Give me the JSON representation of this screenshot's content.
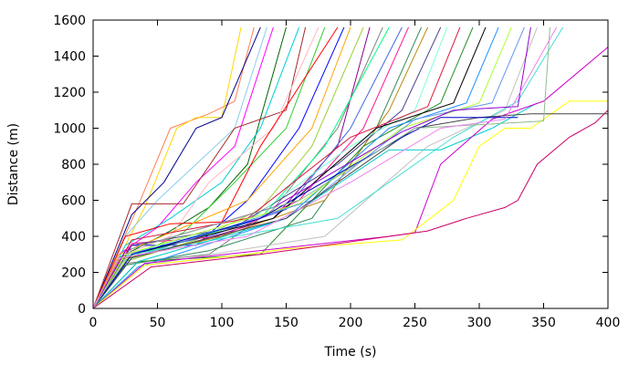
{
  "chart_data": {
    "type": "line",
    "title": "",
    "xlabel": "Time (s)",
    "ylabel": "Distance (m)",
    "xlim": [
      0,
      400
    ],
    "ylim": [
      0,
      1600
    ],
    "xticks": [
      0,
      50,
      100,
      150,
      200,
      250,
      300,
      350,
      400
    ],
    "yticks": [
      0,
      200,
      400,
      600,
      800,
      1000,
      1200,
      1400,
      1600
    ],
    "grid": false,
    "legend": "none",
    "series": [
      {
        "color": "#ff7f50",
        "points": [
          [
            0,
            0
          ],
          [
            35,
            570
          ],
          [
            60,
            1000
          ],
          [
            90,
            1080
          ],
          [
            110,
            1150
          ],
          [
            125,
            1560
          ]
        ]
      },
      {
        "color": "#ffd700",
        "points": [
          [
            0,
            0
          ],
          [
            40,
            560
          ],
          [
            65,
            1000
          ],
          [
            80,
            1060
          ],
          [
            100,
            1060
          ],
          [
            115,
            1560
          ]
        ]
      },
      {
        "color": "#00008b",
        "points": [
          [
            0,
            0
          ],
          [
            30,
            520
          ],
          [
            55,
            700
          ],
          [
            80,
            1000
          ],
          [
            100,
            1060
          ],
          [
            130,
            1560
          ]
        ]
      },
      {
        "color": "#87ceeb",
        "points": [
          [
            0,
            0
          ],
          [
            25,
            400
          ],
          [
            50,
            600
          ],
          [
            80,
            800
          ],
          [
            110,
            1000
          ],
          [
            135,
            1560
          ]
        ]
      },
      {
        "color": "#ff00ff",
        "points": [
          [
            0,
            0
          ],
          [
            20,
            300
          ],
          [
            50,
            450
          ],
          [
            80,
            700
          ],
          [
            110,
            900
          ],
          [
            140,
            1560
          ]
        ]
      },
      {
        "color": "#006400",
        "points": [
          [
            0,
            0
          ],
          [
            20,
            280
          ],
          [
            60,
            430
          ],
          [
            90,
            560
          ],
          [
            120,
            800
          ],
          [
            150,
            1560
          ]
        ]
      },
      {
        "color": "#00ced1",
        "points": [
          [
            0,
            0
          ],
          [
            25,
            350
          ],
          [
            60,
            500
          ],
          [
            100,
            700
          ],
          [
            130,
            1000
          ],
          [
            160,
            1560
          ]
        ]
      },
      {
        "color": "#a52a2a",
        "points": [
          [
            0,
            0
          ],
          [
            30,
            580
          ],
          [
            70,
            580
          ],
          [
            110,
            1000
          ],
          [
            150,
            1100
          ],
          [
            165,
            1560
          ]
        ]
      },
      {
        "color": "#ffb6c1",
        "points": [
          [
            0,
            0
          ],
          [
            25,
            300
          ],
          [
            60,
            400
          ],
          [
            90,
            700
          ],
          [
            140,
            1000
          ],
          [
            175,
            1560
          ]
        ]
      },
      {
        "color": "#32cd32",
        "points": [
          [
            0,
            0
          ],
          [
            20,
            250
          ],
          [
            70,
            420
          ],
          [
            110,
            700
          ],
          [
            150,
            1000
          ],
          [
            180,
            1560
          ]
        ]
      },
      {
        "color": "#ff0000",
        "points": [
          [
            0,
            0
          ],
          [
            25,
            400
          ],
          [
            60,
            470
          ],
          [
            100,
            480
          ],
          [
            130,
            900
          ],
          [
            190,
            1560
          ]
        ]
      },
      {
        "color": "#0000ff",
        "points": [
          [
            0,
            0
          ],
          [
            30,
            350
          ],
          [
            80,
            350
          ],
          [
            120,
            600
          ],
          [
            160,
            1000
          ],
          [
            195,
            1560
          ]
        ]
      },
      {
        "color": "#ffa500",
        "points": [
          [
            0,
            0
          ],
          [
            20,
            300
          ],
          [
            60,
            420
          ],
          [
            120,
            600
          ],
          [
            170,
            1000
          ],
          [
            200,
            1560
          ]
        ]
      },
      {
        "color": "#9acd32",
        "points": [
          [
            0,
            0
          ],
          [
            25,
            260
          ],
          [
            80,
            380
          ],
          [
            130,
            550
          ],
          [
            170,
            900
          ],
          [
            210,
            1560
          ]
        ]
      },
      {
        "color": "#8b008b",
        "points": [
          [
            0,
            0
          ],
          [
            30,
            300
          ],
          [
            70,
            350
          ],
          [
            140,
            500
          ],
          [
            190,
            900
          ],
          [
            215,
            1560
          ]
        ]
      },
      {
        "color": "#808080",
        "points": [
          [
            0,
            0
          ],
          [
            25,
            250
          ],
          [
            90,
            300
          ],
          [
            140,
            550
          ],
          [
            190,
            1000
          ],
          [
            225,
            1560
          ]
        ]
      },
      {
        "color": "#00ff7f",
        "points": [
          [
            0,
            0
          ],
          [
            20,
            280
          ],
          [
            60,
            350
          ],
          [
            130,
            500
          ],
          [
            180,
            900
          ],
          [
            230,
            1560
          ]
        ]
      },
      {
        "color": "#4169e1",
        "points": [
          [
            0,
            0
          ],
          [
            25,
            300
          ],
          [
            90,
            400
          ],
          [
            150,
            550
          ],
          [
            200,
            1000
          ],
          [
            240,
            1560
          ]
        ]
      },
      {
        "color": "#ff1493",
        "points": [
          [
            0,
            0
          ],
          [
            30,
            360
          ],
          [
            100,
            400
          ],
          [
            160,
            600
          ],
          [
            210,
            1000
          ],
          [
            245,
            1560
          ]
        ]
      },
      {
        "color": "#2e8b57",
        "points": [
          [
            0,
            0
          ],
          [
            25,
            240
          ],
          [
            90,
            320
          ],
          [
            170,
            500
          ],
          [
            220,
            1000
          ],
          [
            255,
            1560
          ]
        ]
      },
      {
        "color": "#b8860b",
        "points": [
          [
            0,
            0
          ],
          [
            20,
            270
          ],
          [
            100,
            400
          ],
          [
            180,
            600
          ],
          [
            230,
            1100
          ],
          [
            260,
            1560
          ]
        ]
      },
      {
        "color": "#483d8b",
        "points": [
          [
            0,
            0
          ],
          [
            30,
            350
          ],
          [
            110,
            450
          ],
          [
            190,
            800
          ],
          [
            240,
            1100
          ],
          [
            270,
            1560
          ]
        ]
      },
      {
        "color": "#7fffd4",
        "points": [
          [
            0,
            0
          ],
          [
            25,
            300
          ],
          [
            120,
            480
          ],
          [
            200,
            900
          ],
          [
            250,
            1100
          ],
          [
            275,
            1560
          ]
        ]
      },
      {
        "color": "#dc143c",
        "points": [
          [
            0,
            0
          ],
          [
            30,
            380
          ],
          [
            120,
            500
          ],
          [
            200,
            950
          ],
          [
            260,
            1120
          ],
          [
            285,
            1560
          ]
        ]
      },
      {
        "color": "#228b22",
        "points": [
          [
            0,
            0
          ],
          [
            35,
            260
          ],
          [
            130,
            300
          ],
          [
            210,
            900
          ],
          [
            270,
            1140
          ],
          [
            295,
            1560
          ]
        ]
      },
      {
        "color": "#000000",
        "points": [
          [
            0,
            0
          ],
          [
            30,
            300
          ],
          [
            140,
            500
          ],
          [
            220,
            1000
          ],
          [
            280,
            1140
          ],
          [
            305,
            1560
          ]
        ]
      },
      {
        "color": "#1e90ff",
        "points": [
          [
            0,
            0
          ],
          [
            35,
            230
          ],
          [
            150,
            500
          ],
          [
            230,
            1000
          ],
          [
            290,
            1140
          ],
          [
            315,
            1560
          ]
        ]
      },
      {
        "color": "#adff2f",
        "points": [
          [
            0,
            0
          ],
          [
            25,
            300
          ],
          [
            160,
            580
          ],
          [
            240,
            1000
          ],
          [
            300,
            1140
          ],
          [
            325,
            1560
          ]
        ]
      },
      {
        "color": "#6495ed",
        "points": [
          [
            0,
            0
          ],
          [
            30,
            280
          ],
          [
            170,
            600
          ],
          [
            250,
            1050
          ],
          [
            310,
            1140
          ],
          [
            335,
            1560
          ]
        ]
      },
      {
        "color": "#c0c0c0",
        "points": [
          [
            0,
            0
          ],
          [
            40,
            240
          ],
          [
            180,
            400
          ],
          [
            260,
            900
          ],
          [
            320,
            1100
          ],
          [
            345,
            1560
          ]
        ]
      },
      {
        "color": "#40e0d0",
        "points": [
          [
            0,
            0
          ],
          [
            30,
            300
          ],
          [
            190,
            500
          ],
          [
            280,
            950
          ],
          [
            330,
            1150
          ],
          [
            365,
            1560
          ]
        ]
      },
      {
        "color": "#00cccc",
        "points": [
          [
            0,
            0
          ],
          [
            35,
            260
          ],
          [
            150,
            500
          ],
          [
            230,
            880
          ],
          [
            270,
            880
          ],
          [
            310,
            1000
          ],
          [
            345,
            1140
          ]
        ]
      },
      {
        "color": "#cc00cc",
        "points": [
          [
            0,
            0
          ],
          [
            40,
            250
          ],
          [
            230,
            400
          ],
          [
            250,
            420
          ],
          [
            270,
            800
          ],
          [
            310,
            1050
          ],
          [
            350,
            1150
          ],
          [
            400,
            1450
          ]
        ]
      },
      {
        "color": "#ffff00",
        "points": [
          [
            0,
            0
          ],
          [
            40,
            240
          ],
          [
            120,
            300
          ],
          [
            150,
            330
          ],
          [
            240,
            380
          ],
          [
            280,
            600
          ],
          [
            300,
            900
          ],
          [
            320,
            1000
          ],
          [
            340,
            1000
          ],
          [
            370,
            1150
          ],
          [
            400,
            1150
          ]
        ]
      },
      {
        "color": "#cc0066",
        "points": [
          [
            0,
            0
          ],
          [
            45,
            230
          ],
          [
            130,
            300
          ],
          [
            180,
            350
          ],
          [
            260,
            430
          ],
          [
            290,
            500
          ],
          [
            320,
            560
          ],
          [
            330,
            600
          ],
          [
            345,
            800
          ],
          [
            370,
            950
          ],
          [
            390,
            1030
          ],
          [
            400,
            1100
          ]
        ]
      },
      {
        "color": "#444444",
        "points": [
          [
            0,
            0
          ],
          [
            30,
            280
          ],
          [
            150,
            500
          ],
          [
            250,
            1000
          ],
          [
            300,
            1060
          ],
          [
            340,
            1080
          ],
          [
            400,
            1080
          ]
        ]
      },
      {
        "color": "#0000cc",
        "points": [
          [
            0,
            0
          ],
          [
            30,
            300
          ],
          [
            130,
            500
          ],
          [
            240,
            950
          ],
          [
            270,
            1060
          ],
          [
            330,
            1060
          ]
        ]
      },
      {
        "color": "#9400d3",
        "points": [
          [
            0,
            0
          ],
          [
            25,
            320
          ],
          [
            140,
            560
          ],
          [
            240,
            980
          ],
          [
            280,
            1100
          ],
          [
            330,
            1120
          ],
          [
            340,
            1560
          ]
        ]
      },
      {
        "color": "#8fbc8f",
        "points": [
          [
            0,
            0
          ],
          [
            30,
            330
          ],
          [
            160,
            600
          ],
          [
            250,
            1000
          ],
          [
            300,
            1020
          ],
          [
            350,
            1040
          ],
          [
            355,
            1560
          ]
        ]
      },
      {
        "color": "#ee82ee",
        "points": [
          [
            0,
            0
          ],
          [
            20,
            280
          ],
          [
            120,
            400
          ],
          [
            200,
            700
          ],
          [
            270,
            1000
          ],
          [
            320,
            1050
          ],
          [
            360,
            1560
          ]
        ]
      }
    ]
  }
}
